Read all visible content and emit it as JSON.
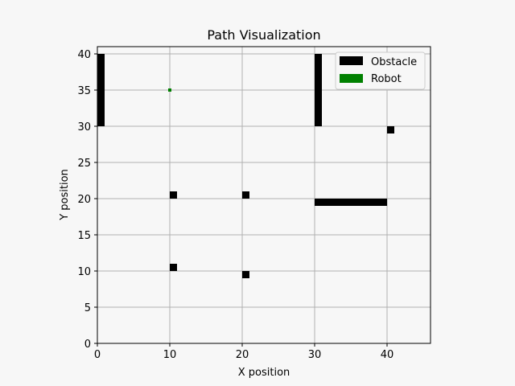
{
  "chart_data": {
    "type": "scatter",
    "title": "Path Visualization",
    "xlabel": "X position",
    "ylabel": "Y position",
    "xlim": [
      0,
      46
    ],
    "ylim": [
      0,
      41
    ],
    "x_ticks": [
      0,
      10,
      20,
      30,
      40
    ],
    "y_ticks": [
      0,
      5,
      10,
      15,
      20,
      25,
      30,
      35,
      40
    ],
    "grid": true,
    "legend_position": "top-right",
    "legend": [
      {
        "label": "Obstacle",
        "color": "#000000"
      },
      {
        "label": "Robot",
        "color": "#008000"
      }
    ],
    "obstacles": [
      {
        "x": [
          0,
          1
        ],
        "y": [
          30,
          40
        ]
      },
      {
        "x": [
          30,
          31
        ],
        "y": [
          30,
          40
        ]
      },
      {
        "x": [
          30,
          40
        ],
        "y": [
          19,
          20
        ]
      },
      {
        "x": [
          40,
          41
        ],
        "y": [
          29,
          30
        ]
      },
      {
        "x": [
          10,
          11
        ],
        "y": [
          20,
          21
        ]
      },
      {
        "x": [
          20,
          21
        ],
        "y": [
          20,
          21
        ]
      },
      {
        "x": [
          10,
          11
        ],
        "y": [
          10,
          11
        ]
      },
      {
        "x": [
          20,
          21
        ],
        "y": [
          9,
          10
        ]
      }
    ],
    "robot": {
      "x": 10,
      "y": 35
    }
  }
}
